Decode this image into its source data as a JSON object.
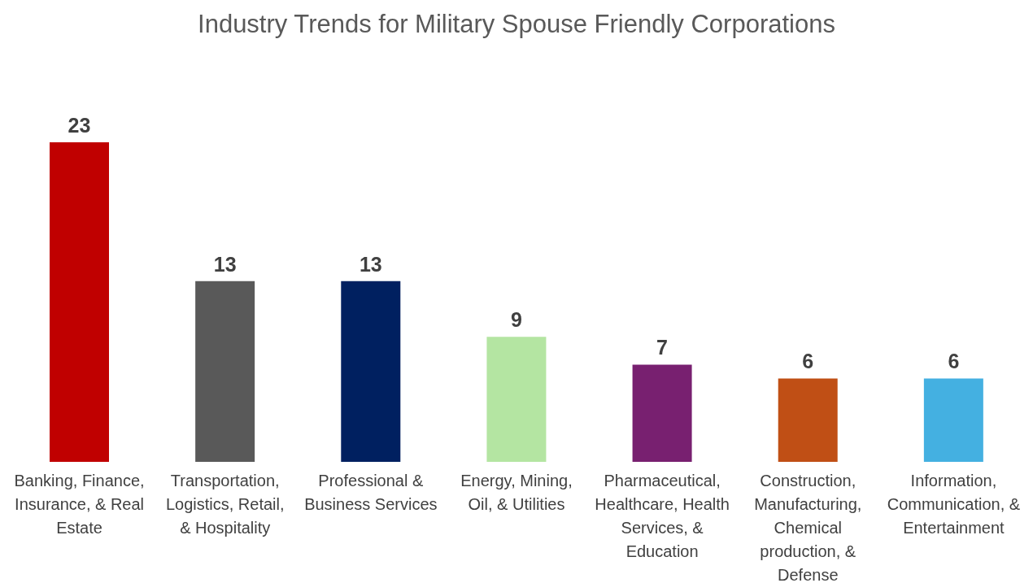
{
  "chart_data": {
    "type": "bar",
    "title": "Industry Trends for Military Spouse Friendly Corporations",
    "categories": [
      "Banking, Finance, Insurance, & Real Estate",
      "Transportation, Logistics, Retail, & Hospitality",
      "Professional & Business Services",
      "Energy, Mining, Oil, & Utilities",
      "Pharmaceutical, Healthcare, Health Services, & Education",
      "Construction, Manufacturing, Chemical production, & Defense",
      "Information, Communication, & Entertainment"
    ],
    "values": [
      23,
      13,
      13,
      9,
      7,
      6,
      6
    ],
    "colors": [
      "#c00000",
      "#595959",
      "#002060",
      "#b4e5a2",
      "#782070",
      "#c04f15",
      "#44b0e1"
    ],
    "data_labels": true,
    "grid": false,
    "legend": false
  }
}
